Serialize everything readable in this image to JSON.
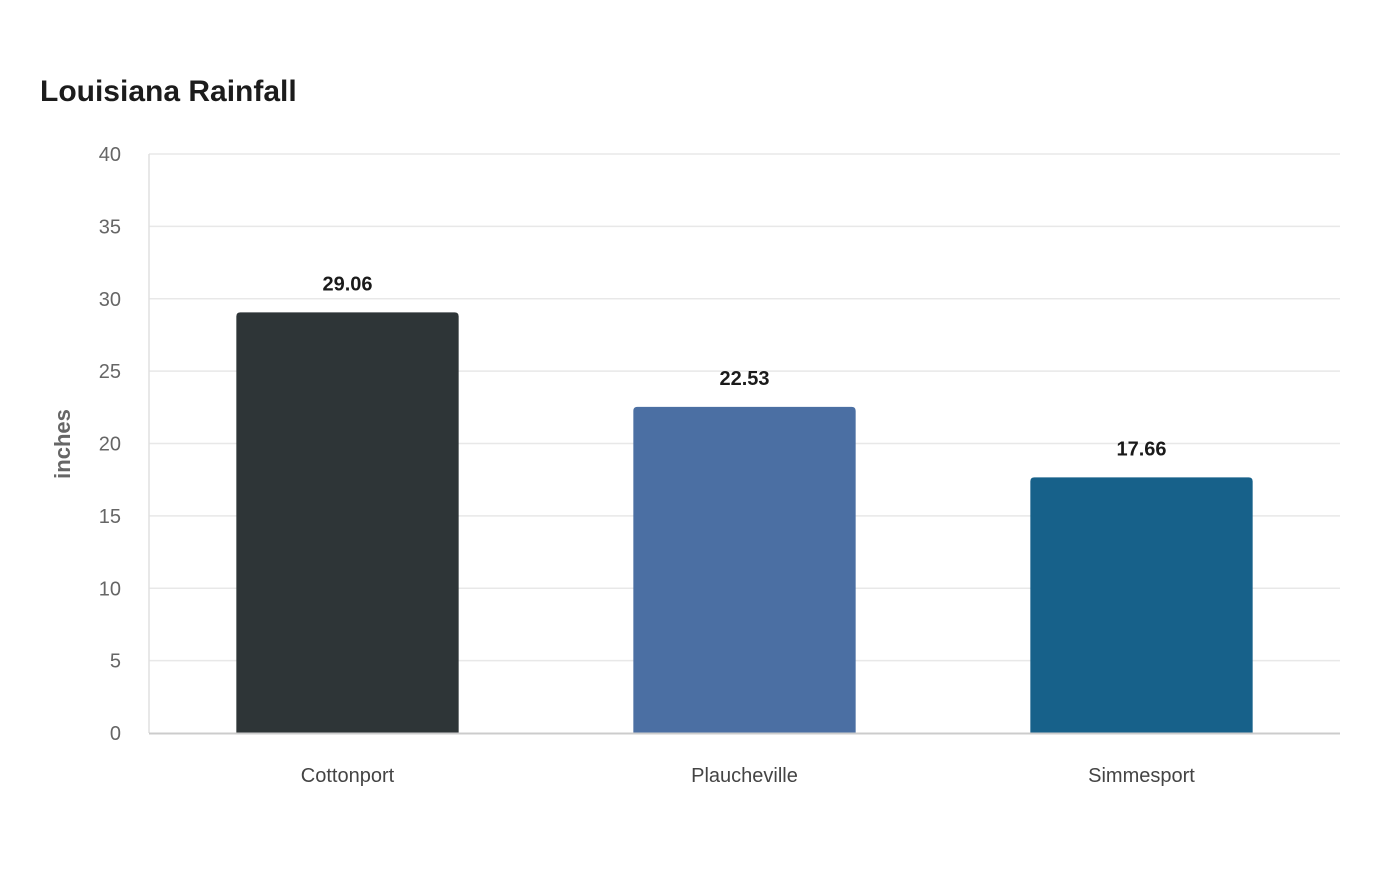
{
  "chart_data": {
    "type": "bar",
    "title": "Louisiana Rainfall",
    "xlabel": "",
    "ylabel": "inches",
    "categories": [
      "Cottonport",
      "Plaucheville",
      "Simmesport"
    ],
    "values": [
      29.06,
      22.53,
      17.66
    ],
    "value_labels": [
      "29.06",
      "22.53",
      "17.66"
    ],
    "colors": [
      "#2e3537",
      "#4b6fa3",
      "#17618a"
    ],
    "ylim": [
      0,
      40
    ],
    "yticks": [
      0,
      5,
      10,
      15,
      20,
      25,
      30,
      35,
      40
    ],
    "grid": true,
    "legend": "none"
  }
}
